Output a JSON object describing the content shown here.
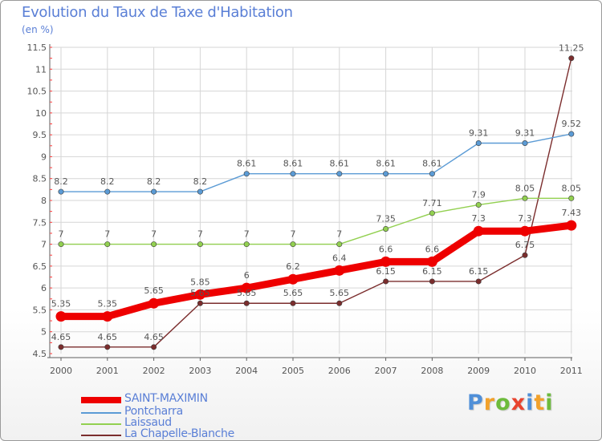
{
  "title": "Evolution du Taux de Taxe d'Habitation",
  "unit": "(en %)",
  "logo": "Proxiti",
  "colors": {
    "text": "#5a7fd6",
    "grid": "#d6d6d6",
    "axis": "#5e5e5e",
    "saint_maximin": "#ee0000",
    "pontcharra": "#5b9bd5",
    "laissaud": "#92d050",
    "la_chapelle_blanche": "#7b2d2d"
  },
  "chart_data": {
    "type": "line",
    "title": "Evolution du Taux de Taxe d'Habitation",
    "ylabel": "(en %)",
    "xlabel": "",
    "x": [
      "2000",
      "2001",
      "2002",
      "2003",
      "2004",
      "2005",
      "2006",
      "2007",
      "2008",
      "2009",
      "2010",
      "2011"
    ],
    "ylim": [
      4.5,
      11.5
    ],
    "yticks": [
      "4.5",
      "5",
      "5.5",
      "6",
      "6.5",
      "7",
      "7.5",
      "8",
      "8.5",
      "9",
      "9.5",
      "10",
      "10.5",
      "11",
      "11.5"
    ],
    "grid": true,
    "legend": "bottom-left",
    "series": [
      {
        "name": "SAINT-MAXIMIN",
        "color": "#ee0000",
        "values": [
          5.35,
          5.35,
          5.65,
          5.85,
          6,
          6.2,
          6.4,
          6.6,
          6.6,
          7.3,
          7.3,
          7.43
        ],
        "labels": [
          "5.35",
          "5.35",
          "5.65",
          "5.85",
          "6",
          "6.2",
          "6.4",
          "6.6",
          "6.6",
          "7.3",
          "7.3",
          "7.43"
        ]
      },
      {
        "name": "Pontcharra",
        "color": "#5b9bd5",
        "values": [
          8.2,
          8.2,
          8.2,
          8.2,
          8.61,
          8.61,
          8.61,
          8.61,
          8.61,
          9.31,
          9.31,
          9.52
        ],
        "labels": [
          "8.2",
          "8.2",
          "8.2",
          "8.2",
          "8.61",
          "8.61",
          "8.61",
          "8.61",
          "8.61",
          "9.31",
          "9.31",
          "9.52"
        ]
      },
      {
        "name": "Laissaud",
        "color": "#92d050",
        "values": [
          7,
          7,
          7,
          7,
          7,
          7,
          7,
          7.35,
          7.71,
          7.9,
          8.05,
          8.05
        ],
        "labels": [
          "7",
          "7",
          "7",
          "7",
          "7",
          "7",
          "7",
          "7.35",
          "7.71",
          "7.9",
          "8.05",
          "8.05"
        ]
      },
      {
        "name": "La Chapelle-Blanche",
        "color": "#7b2d2d",
        "values": [
          4.65,
          4.65,
          4.65,
          5.65,
          5.65,
          5.65,
          5.65,
          6.15,
          6.15,
          6.15,
          6.75,
          11.25
        ],
        "labels": [
          "4.65",
          "4.65",
          "4.65",
          "5.65",
          "5.65",
          "5.65",
          "5.65",
          "6.15",
          "6.15",
          "6.15",
          "6.75",
          "11.25"
        ]
      }
    ]
  }
}
